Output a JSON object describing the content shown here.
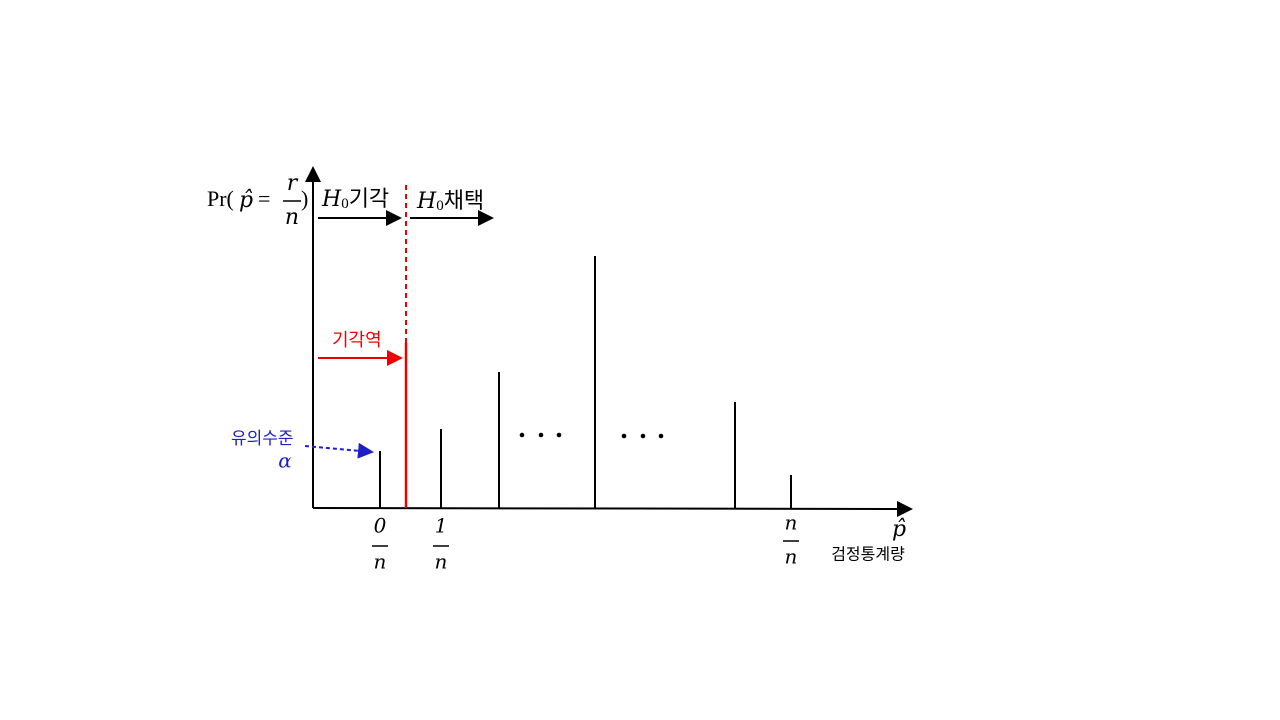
{
  "y_axis_label": {
    "left": "Pr(",
    "hat": "p̂",
    "equals": "=",
    "numerator": "r",
    "denominator": "n",
    "right": ")"
  },
  "regions": {
    "reject": {
      "symbol": "H",
      "subscript": "0",
      "text": "기각"
    },
    "accept": {
      "symbol": "H",
      "subscript": "0",
      "text": "채택"
    }
  },
  "critical_region": "기각역",
  "significance": {
    "label": "유의수준",
    "symbol": "α"
  },
  "x_ticks": [
    {
      "numerator": "0",
      "denominator": "n"
    },
    {
      "numerator": "1",
      "denominator": "n"
    },
    {
      "numerator": "n",
      "denominator": "n"
    }
  ],
  "x_axis": {
    "symbol": "p̂",
    "label": "검정통계량"
  }
}
